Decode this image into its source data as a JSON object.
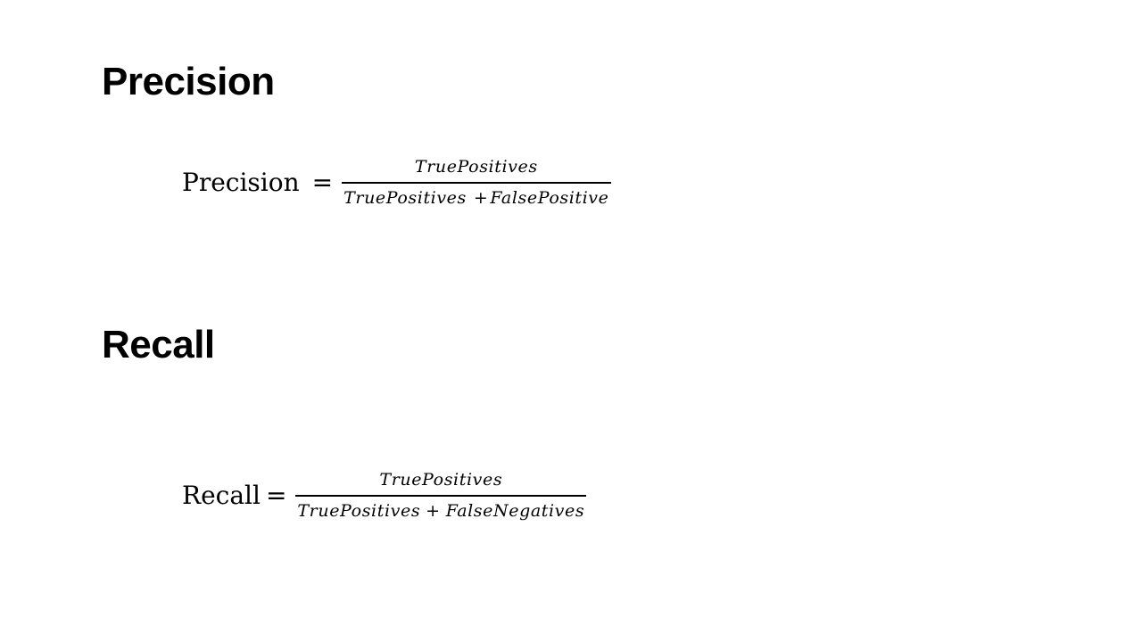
{
  "sections": {
    "precision": {
      "heading": "Precision",
      "formula": {
        "lhs": "Precision",
        "equals": "=",
        "numerator": "TruePositives",
        "denominator_term1": "TruePositives",
        "plus": "+",
        "denominator_term2": "FalsePositive"
      }
    },
    "recall": {
      "heading": "Recall",
      "formula": {
        "lhs": "Recall",
        "equals": "=",
        "numerator": "TruePositives",
        "denominator_term1": "TruePositives",
        "plus": "+",
        "denominator_term2": "FalseNegatives"
      }
    }
  }
}
